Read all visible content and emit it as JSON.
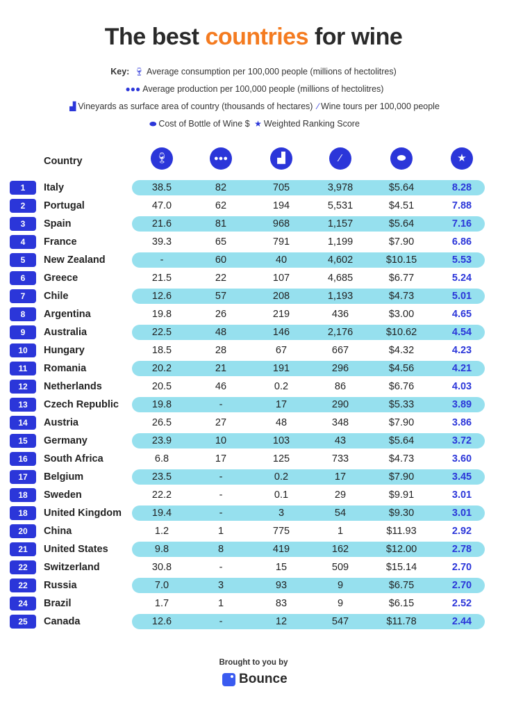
{
  "title": {
    "part1": "The best ",
    "highlight": "countries",
    "part2": " for wine",
    "highlight_color": "#f47b20"
  },
  "key": {
    "label": "Key:",
    "items": [
      {
        "icon": "wine-glass-icon",
        "text": "Average consumption per 100,000 people (millions of hectolitres)"
      },
      {
        "icon": "people-group-icon",
        "text": "Average production per 100,000 people (millions of hectolitres)"
      },
      {
        "icon": "area-chart-icon",
        "text": "Vineyards as surface area of country (thousands of hectares)"
      },
      {
        "icon": "wine-bottle-icon",
        "text": "Wine tours per 100,000 people"
      },
      {
        "icon": "coin-icon",
        "text": "Cost of Bottle of Wine $"
      },
      {
        "icon": "star-icon",
        "text": "Weighted Ranking Score"
      }
    ]
  },
  "table": {
    "country_header": "Country",
    "accent_color": "#2b36d9",
    "stripe_color": "#96e0ee",
    "rows": [
      [
        "1",
        "Italy",
        "38.5",
        "82",
        "705",
        "3,978",
        "$5.64",
        "8.28"
      ],
      [
        "2",
        "Portugal",
        "47.0",
        "62",
        "194",
        "5,531",
        "$4.51",
        "7.88"
      ],
      [
        "3",
        "Spain",
        "21.6",
        "81",
        "968",
        "1,157",
        "$5.64",
        "7.16"
      ],
      [
        "4",
        "France",
        "39.3",
        "65",
        "791",
        "1,199",
        "$7.90",
        "6.86"
      ],
      [
        "5",
        "New Zealand",
        "-",
        "60",
        "40",
        "4,602",
        "$10.15",
        "5.53"
      ],
      [
        "6",
        "Greece",
        "21.5",
        "22",
        "107",
        "4,685",
        "$6.77",
        "5.24"
      ],
      [
        "7",
        "Chile",
        "12.6",
        "57",
        "208",
        "1,193",
        "$4.73",
        "5.01"
      ],
      [
        "8",
        "Argentina",
        "19.8",
        "26",
        "219",
        "436",
        "$3.00",
        "4.65"
      ],
      [
        "9",
        "Australia",
        "22.5",
        "48",
        "146",
        "2,176",
        "$10.62",
        "4.54"
      ],
      [
        "10",
        "Hungary",
        "18.5",
        "28",
        "67",
        "667",
        "$4.32",
        "4.23"
      ],
      [
        "11",
        "Romania",
        "20.2",
        "21",
        "191",
        "296",
        "$4.56",
        "4.21"
      ],
      [
        "12",
        "Netherlands",
        "20.5",
        "46",
        "0.2",
        "86",
        "$6.76",
        "4.03"
      ],
      [
        "13",
        "Czech Republic",
        "19.8",
        "-",
        "17",
        "290",
        "$5.33",
        "3.89"
      ],
      [
        "14",
        "Austria",
        "26.5",
        "27",
        "48",
        "348",
        "$7.90",
        "3.86"
      ],
      [
        "15",
        "Germany",
        "23.9",
        "10",
        "103",
        "43",
        "$5.64",
        "3.72"
      ],
      [
        "16",
        "South Africa",
        "6.8",
        "17",
        "125",
        "733",
        "$4.73",
        "3.60"
      ],
      [
        "17",
        "Belgium",
        "23.5",
        "-",
        "0.2",
        "17",
        "$7.90",
        "3.45"
      ],
      [
        "18",
        "Sweden",
        "22.2",
        "-",
        "0.1",
        "29",
        "$9.91",
        "3.01"
      ],
      [
        "18",
        "United Kingdom",
        "19.4",
        "-",
        "3",
        "54",
        "$9.30",
        "3.01"
      ],
      [
        "20",
        "China",
        "1.2",
        "1",
        "775",
        "1",
        "$11.93",
        "2.92"
      ],
      [
        "21",
        "United States",
        "9.8",
        "8",
        "419",
        "162",
        "$12.00",
        "2.78"
      ],
      [
        "22",
        "Switzerland",
        "30.8",
        "-",
        "15",
        "509",
        "$15.14",
        "2.70"
      ],
      [
        "22",
        "Russia",
        "7.0",
        "3",
        "93",
        "9",
        "$6.75",
        "2.70"
      ],
      [
        "24",
        "Brazil",
        "1.7",
        "1",
        "83",
        "9",
        "$6.15",
        "2.52"
      ],
      [
        "25",
        "Canada",
        "12.6",
        "-",
        "12",
        "547",
        "$11.78",
        "2.44"
      ]
    ]
  },
  "footer": {
    "brought": "Brought to you by",
    "brand": "Bounce"
  }
}
